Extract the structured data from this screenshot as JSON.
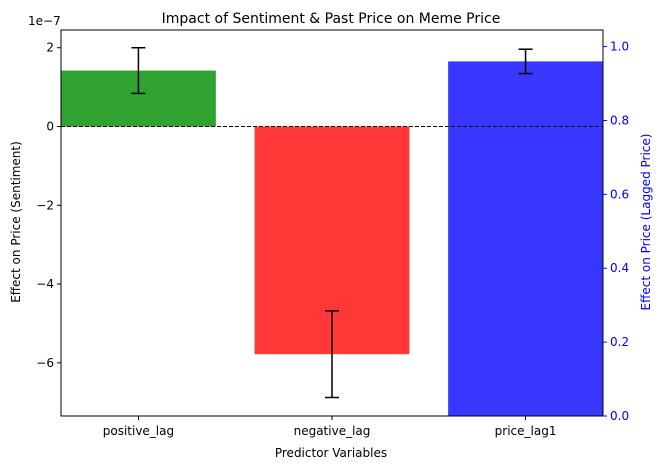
{
  "chart_data": {
    "type": "bar",
    "title": "Impact of Sentiment & Past Price on Meme Price",
    "xlabel": "Predictor Variables",
    "ylabel_left": "Effect on Price (Sentiment)",
    "ylabel_right": "Effect on Price (Lagged Price)",
    "left_axis_offset_label": "1e−7",
    "categories": [
      "positive_lag",
      "negative_lag",
      "price_lag1"
    ],
    "bars": [
      {
        "category": "positive_lag",
        "axis": "left",
        "value": 1.42,
        "err": 0.58,
        "color": "#2ca02c"
      },
      {
        "category": "negative_lag",
        "axis": "left",
        "value": -5.78,
        "err": 1.1,
        "color": "#ff3333"
      },
      {
        "category": "price_lag1",
        "axis": "right",
        "value": 0.96,
        "err": 0.033,
        "color": "#3333ff"
      }
    ],
    "left_ylim": [
      -7.35,
      2.45
    ],
    "left_ticks": [
      2,
      0,
      -2,
      -4,
      -6
    ],
    "left_tick_labels": [
      "2",
      "0",
      "−2",
      "−4",
      "−6"
    ],
    "right_ylim": [
      0.0,
      1.045
    ],
    "right_ticks": [
      0.0,
      0.2,
      0.4,
      0.6,
      0.8,
      1.0
    ],
    "right_tick_labels": [
      "0.0",
      "0.2",
      "0.4",
      "0.6",
      "0.8",
      "1.0"
    ],
    "right_axis_color": "#0000ff",
    "zero_line": "dashed",
    "grid": false
  }
}
